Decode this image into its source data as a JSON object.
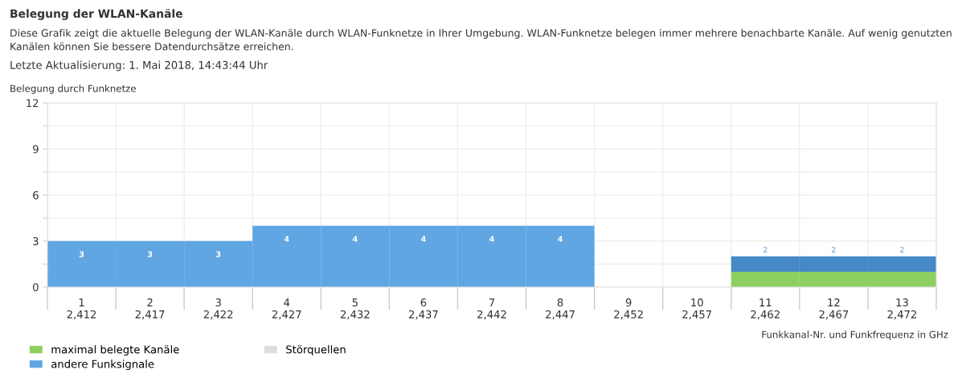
{
  "chart_data": {
    "type": "bar",
    "stacked": true,
    "title": "Belegung der WLAN-Kanäle",
    "subtitle": "Diese Grafik zeigt die aktuelle Belegung der WLAN-Kanäle durch WLAN-Funknetze in Ihrer Umgebung. WLAN-Funknetze belegen immer mehrere benachbarte Kanäle. Auf wenig genutzten Kanälen können Sie bessere Datendurchsätze erreichen.",
    "annotations": [
      "Letzte Aktualisierung: 1. Mai 2018, 14:43:44 Uhr"
    ],
    "ylabel": "Belegung durch Funknetze",
    "xlabel": "Funkkanal-Nr. und Funkfrequenz in GHz",
    "categories": [
      "1\n2,412",
      "2\n2,417",
      "3\n2,422",
      "4\n2,427",
      "5\n2,432",
      "6\n2,437",
      "7\n2,442",
      "8\n2,447",
      "9\n2,452",
      "10\n2,457",
      "11\n2,462",
      "12\n2,467",
      "13\n2,472"
    ],
    "series": [
      {
        "name": "maximal belegte Kanäle",
        "color": "#8dd061",
        "values": [
          0,
          0,
          0,
          0,
          0,
          0,
          0,
          0,
          0,
          0,
          1,
          1,
          1
        ]
      },
      {
        "name": "andere Funksignale",
        "color": "#5fa6e3",
        "colors": [
          "#5fa6e3",
          "#5fa6e3",
          "#5fa6e3",
          "#5fa6e3",
          "#5fa6e3",
          "#5fa6e3",
          "#5fa6e3",
          "#5fa6e3",
          "#5fa6e3",
          "#5fa6e3",
          "#4689c7",
          "#4689c7",
          "#4689c7"
        ],
        "values": [
          3,
          3,
          3,
          4,
          4,
          4,
          4,
          4,
          0,
          0,
          1,
          1,
          1
        ]
      },
      {
        "name": "Störquellen",
        "color": "#dddddd",
        "values": [
          0,
          0,
          0,
          0,
          0,
          0,
          0,
          0,
          0,
          0,
          0,
          0,
          0
        ]
      }
    ],
    "totals": [
      "3",
      "3",
      "3",
      "4",
      "4",
      "4",
      "4",
      "4",
      null,
      null,
      "2",
      "2",
      "2"
    ],
    "ylim": [
      0,
      12
    ],
    "yticks": [
      0,
      {
        "value": 1.5,
        "label": null
      },
      3,
      {
        "value": 4.5,
        "label": null
      },
      6,
      {
        "value": 7.5,
        "label": null
      },
      9,
      {
        "value": 10.5,
        "label": null
      },
      12
    ],
    "grid": true,
    "legend": "bottom left"
  }
}
